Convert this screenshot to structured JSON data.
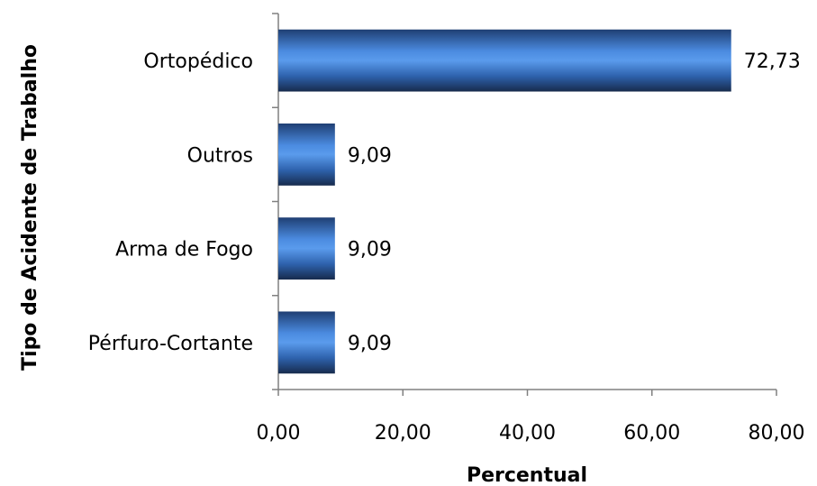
{
  "chart_data": {
    "type": "bar",
    "orientation": "horizontal",
    "categories": [
      "Pérfuro-Cortante",
      "Arma de Fogo",
      "Outros",
      "Ortopédico"
    ],
    "values": [
      9.09,
      9.09,
      9.09,
      72.73
    ],
    "value_labels": [
      "9,09",
      "9,09",
      "9,09",
      "72,73"
    ],
    "xlabel": "Percentual",
    "ylabel": "Tipo de Acidente de Trabalho",
    "xlim": [
      0,
      80
    ],
    "x_ticks": [
      0,
      20,
      40,
      60,
      80
    ],
    "x_tick_labels": [
      "0,00",
      "20,00",
      "40,00",
      "60,00",
      "80,00"
    ],
    "grid": false,
    "bar_color": "#2e6bc0"
  }
}
